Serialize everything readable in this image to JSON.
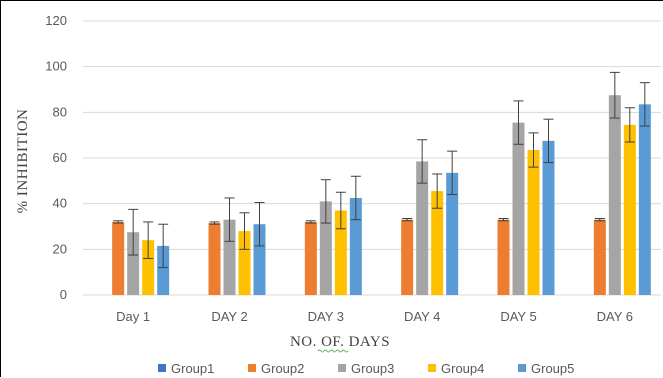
{
  "chart_data": {
    "type": "bar",
    "title": "",
    "xlabel": "NO. OF. DAYS",
    "ylabel": "% INHIBITION",
    "ylim": [
      0,
      120
    ],
    "yticks": [
      "0",
      "20",
      "40",
      "60",
      "80",
      "100",
      "120"
    ],
    "categories": [
      "Day 1",
      "DAY 2",
      "DAY 3",
      "DAY 4",
      "DAY 5",
      "DAY 6"
    ],
    "grid": true,
    "legend_position": "bottom",
    "series": [
      {
        "name": "Group1",
        "color": "#4472C4",
        "values": [
          0,
          0,
          0,
          0,
          0,
          0
        ],
        "errors": [
          0,
          0,
          0,
          0,
          0,
          0
        ]
      },
      {
        "name": "Group2",
        "color": "#ED7D31",
        "values": [
          32,
          31.5,
          32,
          33,
          33,
          33
        ],
        "errors": [
          0.5,
          0.5,
          0.5,
          0.5,
          0.5,
          0.5
        ]
      },
      {
        "name": "Group3",
        "color": "#A5A5A5",
        "values": [
          27.5,
          33,
          41,
          58.5,
          75.5,
          87.5
        ],
        "errors": [
          10,
          9.5,
          9.5,
          9.5,
          9.5,
          10
        ]
      },
      {
        "name": "Group4",
        "color": "#FFC000",
        "values": [
          24,
          28,
          37,
          45.5,
          63.5,
          74.5
        ],
        "errors": [
          8,
          8,
          8,
          7.5,
          7.5,
          7.5
        ]
      },
      {
        "name": "Group5",
        "color": "#5B9BD5",
        "values": [
          21.5,
          31,
          42.5,
          53.5,
          67.5,
          83.5
        ],
        "errors": [
          9.5,
          9.5,
          9.5,
          9.5,
          9.5,
          9.5
        ]
      }
    ]
  }
}
